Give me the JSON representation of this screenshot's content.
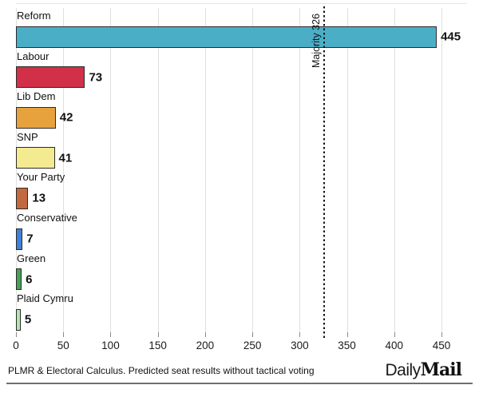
{
  "chart_data": {
    "type": "bar",
    "orientation": "horizontal",
    "title": "",
    "xlabel": "",
    "ylabel": "",
    "categories": [
      "Reform",
      "Labour",
      "Lib Dem",
      "SNP",
      "Your Party",
      "Conservative",
      "Green",
      "Plaid Cymru"
    ],
    "values": [
      445,
      73,
      42,
      41,
      13,
      7,
      6,
      5
    ],
    "bar_colors": [
      "#4BAEC7",
      "#D13048",
      "#E7A23E",
      "#F4EA90",
      "#C2693F",
      "#3F80D9",
      "#46A05A",
      "#B2E8AE"
    ],
    "x_ticks": [
      0,
      50,
      100,
      150,
      200,
      250,
      300,
      350,
      400,
      450
    ],
    "xlim": [
      0,
      478
    ],
    "grid": true,
    "legend": "none",
    "reference_line": {
      "value": 326,
      "label": "Majority 326"
    }
  },
  "footer": {
    "source": "PLMR & Electoral Calculus. Predicted seat results without tactical voting",
    "brand_daily": "Daily",
    "brand_mail": "Mail"
  }
}
